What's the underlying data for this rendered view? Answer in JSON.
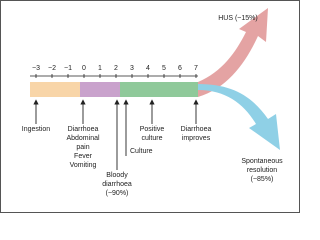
{
  "timeline": {
    "ticks": [
      "−3",
      "−2",
      "−1",
      "0",
      "1",
      "2",
      "3",
      "4",
      "5",
      "6",
      "7"
    ]
  },
  "events": [
    {
      "lines": [
        "Ingestion"
      ]
    },
    {
      "lines": [
        "Diarrhoea",
        "Abdominal",
        "pain",
        "Fever",
        "Vomiting"
      ]
    },
    {
      "lines": [
        "Bloody",
        "diarrhoea",
        "(~90%)"
      ]
    },
    {
      "lines": [
        "Culture"
      ]
    },
    {
      "lines": [
        "Positive",
        "culture"
      ]
    },
    {
      "lines": [
        "Diarrhoea",
        "improves"
      ]
    }
  ],
  "outcomes": {
    "hus": "HUS (~15%)",
    "resolution": [
      "Spontaneous",
      "resolution",
      "(~85%)"
    ]
  }
}
